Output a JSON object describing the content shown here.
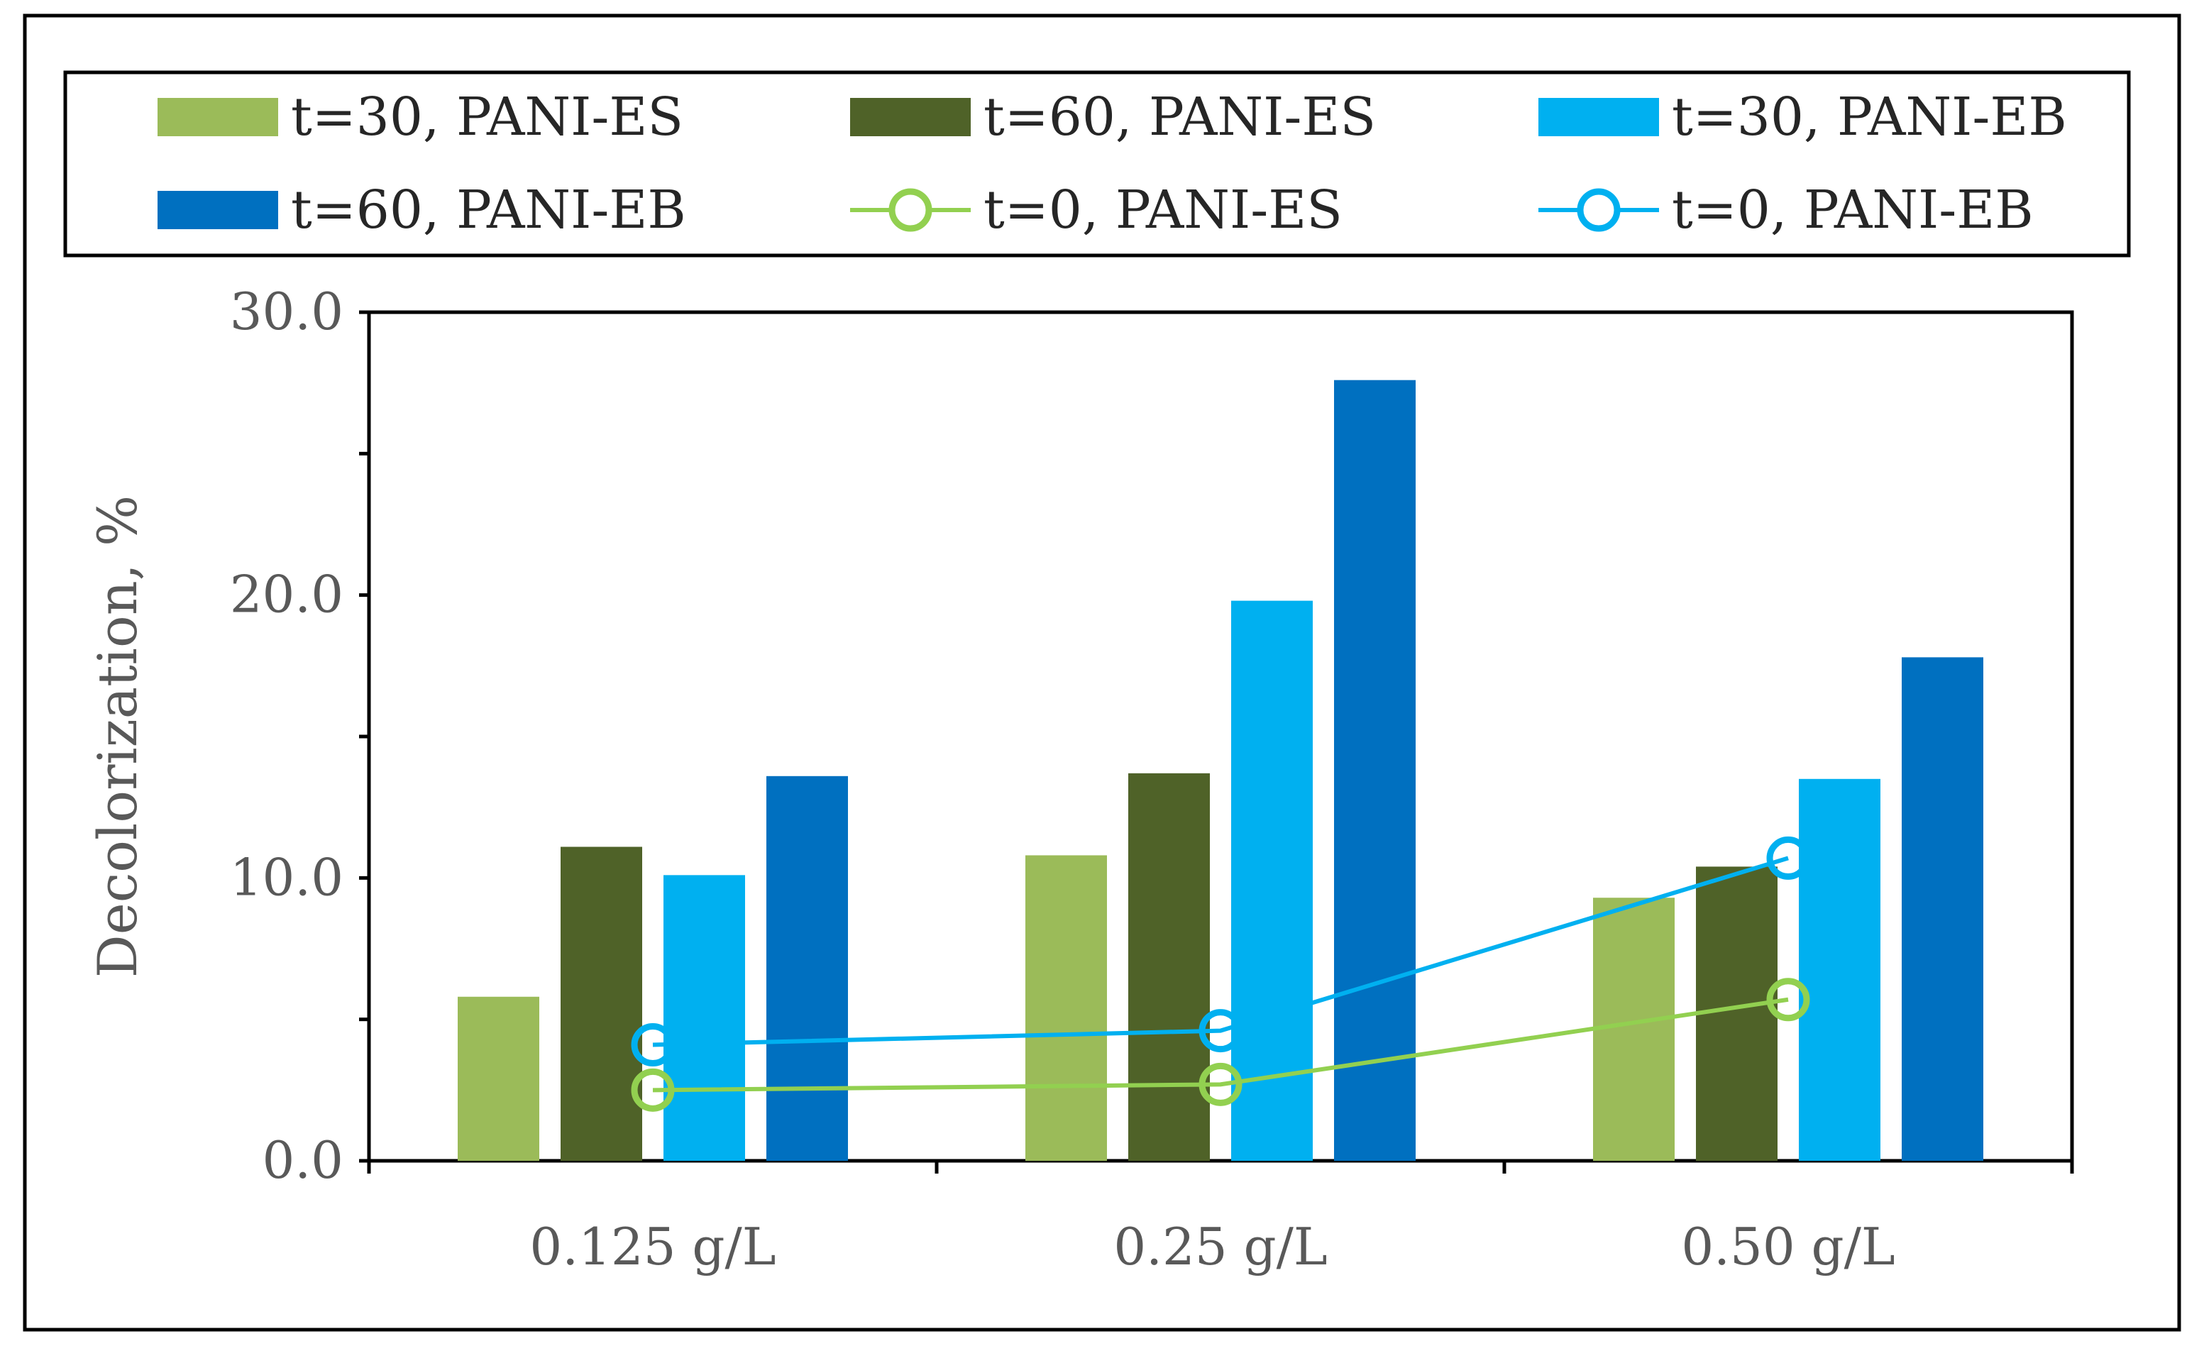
{
  "chart_data": {
    "type": "bar",
    "title": "",
    "xlabel": "",
    "ylabel": "Decolorization, %",
    "ylim": [
      0,
      30
    ],
    "yticks": [
      "0.0",
      "10.0",
      "20.0",
      "30.0"
    ],
    "categories": [
      "0.125 g/L",
      "0.25 g/L",
      "0.50 g/L"
    ],
    "series": [
      {
        "name": "t=30, PANI-ES",
        "kind": "bar",
        "color": "#9BBB59",
        "values": [
          5.8,
          10.8,
          9.3
        ]
      },
      {
        "name": "t=60, PANI-ES",
        "kind": "bar",
        "color": "#4F6228",
        "values": [
          11.1,
          13.7,
          10.4
        ]
      },
      {
        "name": "t=30, PANI-EB",
        "kind": "bar",
        "color": "#00B0F0",
        "values": [
          10.1,
          19.8,
          13.5
        ]
      },
      {
        "name": "t=60, PANI-EB",
        "kind": "bar",
        "color": "#0070C0",
        "values": [
          13.6,
          27.6,
          17.8
        ]
      },
      {
        "name": "t=0, PANI-ES",
        "kind": "line",
        "color": "#92D050",
        "values": [
          2.5,
          2.7,
          5.7
        ]
      },
      {
        "name": "t=0, PANI-EB",
        "kind": "line",
        "color": "#00B0F0",
        "values": [
          4.1,
          4.6,
          10.7
        ]
      }
    ],
    "legend_position": "top"
  }
}
